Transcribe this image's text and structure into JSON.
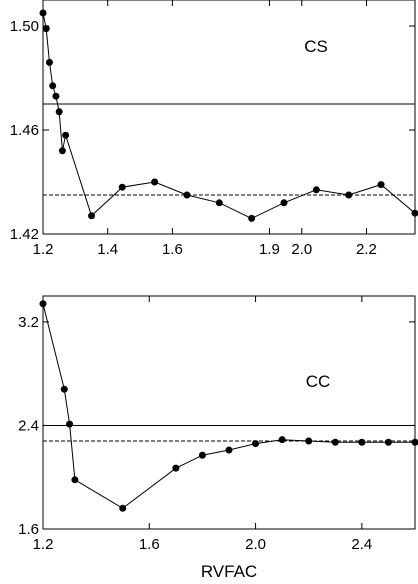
{
  "chart_data": [
    {
      "type": "line",
      "title": "CS",
      "xlabel": "",
      "ylabel": "",
      "xlim": [
        1.2,
        2.35
      ],
      "ylim": [
        1.42,
        1.51
      ],
      "xticks": [
        1.2,
        1.4,
        1.6,
        1.9,
        2.0,
        2.2
      ],
      "xtick_labels": [
        "1.2",
        "1.4",
        "1.6",
        "1.9",
        "2.0",
        "2.2"
      ],
      "yticks": [
        1.42,
        1.46,
        1.5
      ],
      "ytick_labels": [
        "1.42",
        "1.46",
        "1.50"
      ],
      "hlines": [
        {
          "y": 1.47,
          "style": "solid"
        },
        {
          "y": 1.435,
          "style": "dashed"
        }
      ],
      "series": [
        {
          "x": [
            1.2,
            1.21,
            1.22,
            1.23,
            1.24,
            1.25,
            1.26,
            1.27,
            1.35,
            1.445,
            1.545,
            1.645,
            1.745,
            1.845,
            1.945,
            2.045,
            2.145,
            2.245,
            2.35
          ],
          "y": [
            1.505,
            1.499,
            1.486,
            1.477,
            1.473,
            1.467,
            1.452,
            1.458,
            1.427,
            1.438,
            1.44,
            1.435,
            1.432,
            1.426,
            1.432,
            1.437,
            1.435,
            1.439,
            1.428
          ]
        }
      ],
      "grid": false
    },
    {
      "type": "line",
      "title": "CC",
      "xlabel": "RVFAC",
      "ylabel": "",
      "xlim": [
        1.2,
        2.6
      ],
      "ylim": [
        1.6,
        3.4
      ],
      "xticks": [
        1.2,
        1.6,
        2.0,
        2.4
      ],
      "xtick_labels": [
        "1.2",
        "1.6",
        "2.0",
        "2.4"
      ],
      "yticks": [
        1.6,
        2.4,
        3.2
      ],
      "ytick_labels": [
        "1.6",
        "2.4",
        "3.2"
      ],
      "hlines": [
        {
          "y": 2.4,
          "style": "solid"
        },
        {
          "y": 2.28,
          "style": "dashed"
        }
      ],
      "series": [
        {
          "x": [
            1.2,
            1.28,
            1.3,
            1.32,
            1.5,
            1.7,
            1.8,
            1.9,
            2.0,
            2.1,
            2.2,
            2.3,
            2.4,
            2.5,
            2.6
          ],
          "y": [
            3.34,
            2.68,
            2.41,
            1.98,
            1.76,
            2.07,
            2.17,
            2.21,
            2.26,
            2.29,
            2.28,
            2.27,
            2.27,
            2.27,
            2.27
          ]
        }
      ],
      "grid": false
    }
  ]
}
